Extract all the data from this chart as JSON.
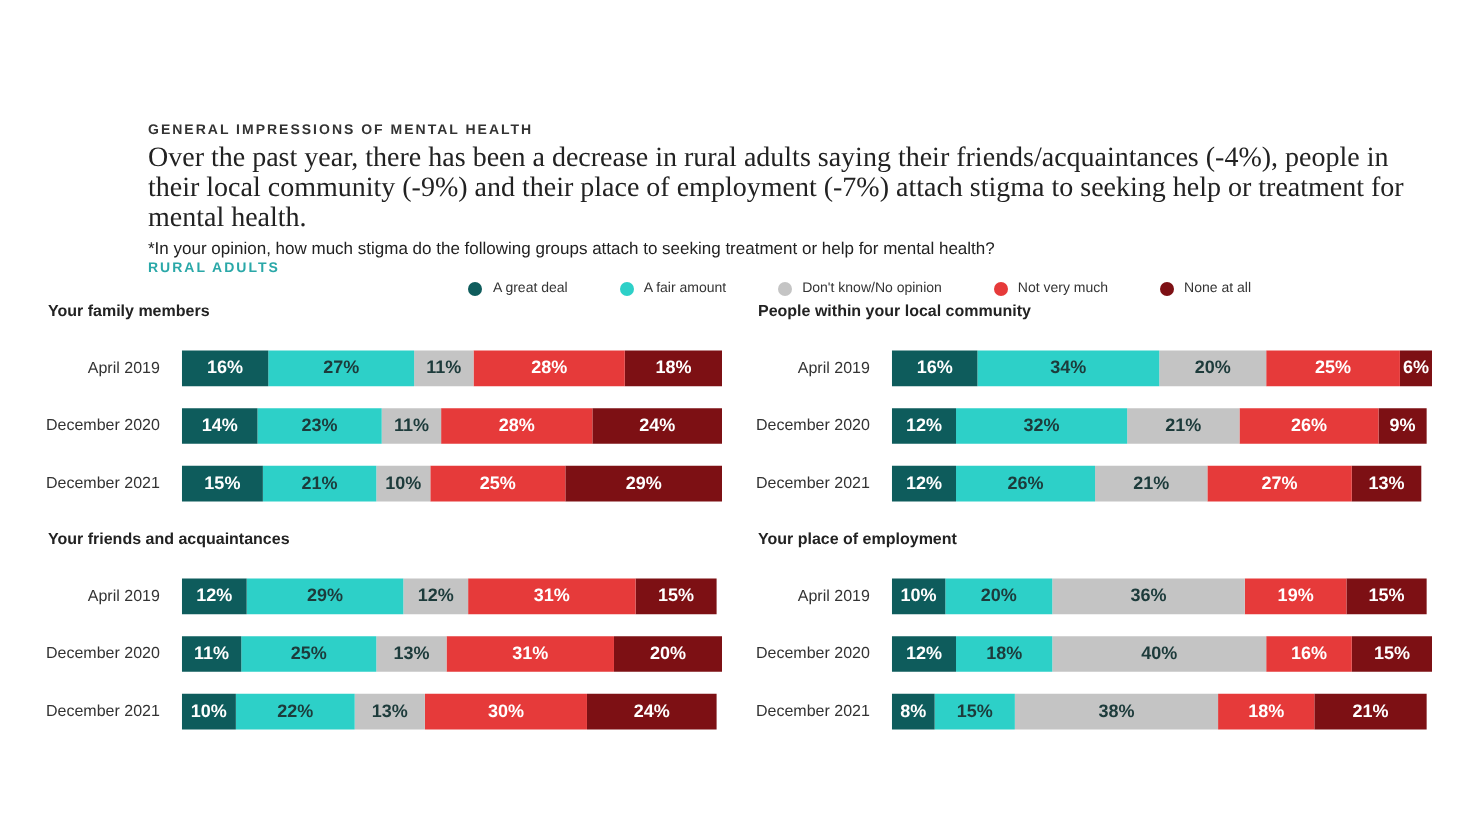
{
  "chart_data": [
    {
      "type": "other",
      "title": "GENERAL IMPRESSIONS OF MENTAL HEALTH",
      "subtitle": "Over the past year, there has been a decrease in rural adults saying their friends/acquaintances (-4%), people in their local community (-9%) and their place of employment (-7%) attach stigma to seeking help or treatment for mental health.",
      "annotations": [
        "*In your opinion, how much stigma do the following groups attach to seeking treatment or help for mental health?",
        "RURAL ADULTS"
      ]
    },
    {
      "type": "bar",
      "title": "Your family members",
      "orientation": "horizontal",
      "stacked": true,
      "legend": "top",
      "categories": [
        "April 2019",
        "December 2020",
        "December 2021"
      ],
      "series": [
        {
          "name": "A great deal",
          "color": "#0e5c5c",
          "values": [
            16,
            14,
            15
          ],
          "value_labels": [
            "16%",
            "14%",
            "15%"
          ]
        },
        {
          "name": "A fair amount",
          "color": "#2dd0c8",
          "values": [
            27,
            23,
            21
          ],
          "value_labels": [
            "27%",
            "23%",
            "21%"
          ]
        },
        {
          "name": "Don't know/No opinion",
          "color": "#c4c4c4",
          "values": [
            11,
            11,
            10
          ],
          "value_labels": [
            "11%",
            "11%",
            "10%"
          ]
        },
        {
          "name": "Not very much",
          "color": "#e63a3a",
          "values": [
            28,
            28,
            25
          ],
          "value_labels": [
            "28%",
            "28%",
            "25%"
          ]
        },
        {
          "name": "None at all",
          "color": "#7d1014",
          "values": [
            18,
            24,
            29
          ],
          "value_labels": [
            "18%",
            "24%",
            "29%"
          ]
        }
      ]
    },
    {
      "type": "bar",
      "title": "People within your local community",
      "orientation": "horizontal",
      "stacked": true,
      "categories": [
        "April 2019",
        "December 2020",
        "December 2021"
      ],
      "series": [
        {
          "color": "#0e5c5c",
          "values": [
            16,
            12,
            12
          ],
          "value_labels": [
            "16%",
            "12%",
            "12%"
          ]
        },
        {
          "color": "#2dd0c8",
          "values": [
            34,
            32,
            26
          ],
          "value_labels": [
            "34%",
            "32%",
            "26%"
          ]
        },
        {
          "color": "#c4c4c4",
          "values": [
            20,
            21,
            21
          ],
          "value_labels": [
            "20%",
            "21%",
            "21%"
          ]
        },
        {
          "color": "#e63a3a",
          "values": [
            25,
            26,
            27
          ],
          "value_labels": [
            "25%",
            "26%",
            "27%"
          ]
        },
        {
          "color": "#7d1014",
          "values": [
            6,
            9,
            13
          ],
          "value_labels": [
            "6%",
            "9%",
            "13%"
          ]
        }
      ]
    },
    {
      "type": "bar",
      "title": "Your friends and acquaintances",
      "orientation": "horizontal",
      "stacked": true,
      "categories": [
        "April 2019",
        "December 2020",
        "December 2021"
      ],
      "series": [
        {
          "color": "#0e5c5c",
          "values": [
            12,
            11,
            10
          ],
          "value_labels": [
            "12%",
            "11%",
            "10%"
          ]
        },
        {
          "color": "#2dd0c8",
          "values": [
            29,
            25,
            22
          ],
          "value_labels": [
            "29%",
            "25%",
            "22%"
          ]
        },
        {
          "color": "#c4c4c4",
          "values": [
            12,
            13,
            13
          ],
          "value_labels": [
            "12%",
            "13%",
            "13%"
          ]
        },
        {
          "color": "#e63a3a",
          "values": [
            31,
            31,
            30
          ],
          "value_labels": [
            "31%",
            "31%",
            "30%"
          ]
        },
        {
          "color": "#7d1014",
          "values": [
            15,
            20,
            24
          ],
          "value_labels": [
            "15%",
            "20%",
            "24%"
          ]
        }
      ]
    },
    {
      "type": "bar",
      "title": "Your place of employment",
      "orientation": "horizontal",
      "stacked": true,
      "categories": [
        "April 2019",
        "December 2020",
        "December 2021"
      ],
      "series": [
        {
          "color": "#0e5c5c",
          "values": [
            10,
            12,
            8
          ],
          "value_labels": [
            "10%",
            "12%",
            "8%"
          ]
        },
        {
          "color": "#2dd0c8",
          "values": [
            20,
            18,
            15
          ],
          "value_labels": [
            "20%",
            "18%",
            "15%"
          ]
        },
        {
          "color": "#c4c4c4",
          "values": [
            36,
            40,
            38
          ],
          "value_labels": [
            "36%",
            "40%",
            "38%"
          ]
        },
        {
          "color": "#e63a3a",
          "values": [
            19,
            16,
            18
          ],
          "value_labels": [
            "19%",
            "16%",
            "18%"
          ]
        },
        {
          "color": "#7d1014",
          "values": [
            15,
            15,
            21
          ],
          "value_labels": [
            "15%",
            "15%",
            "21%"
          ]
        }
      ]
    }
  ]
}
